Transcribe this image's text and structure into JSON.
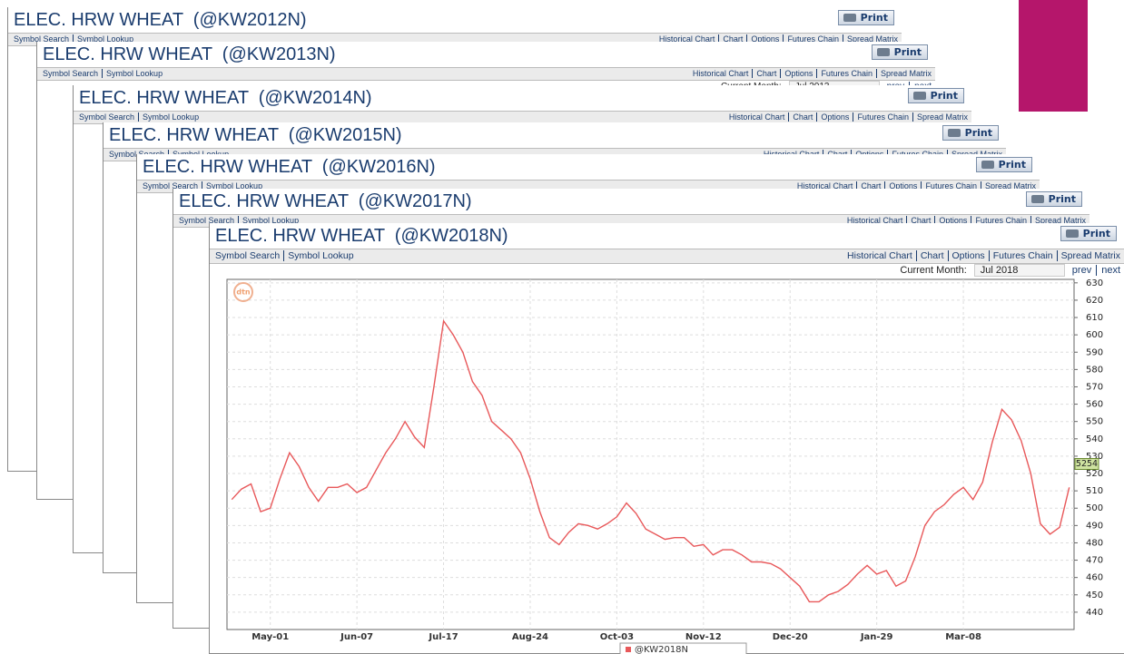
{
  "windows": [
    {
      "title": "ELEC. HRW WHEAT  (@KW2012N)",
      "print": "Print",
      "links": [
        "Symbol Search",
        "Symbol Lookup"
      ],
      "menu": [
        "Historical Chart",
        "Chart",
        "Options",
        "Futures Chain",
        "Spread Matrix"
      ]
    },
    {
      "title": "ELEC. HRW WHEAT  (@KW2013N)",
      "print": "Print",
      "links": [
        "Symbol Search",
        "Symbol Lookup"
      ],
      "menu": [
        "Historical Chart",
        "Chart",
        "Options",
        "Futures Chain",
        "Spread Matrix"
      ],
      "current_month": {
        "label": "Current Month:",
        "value": "Jul 2013",
        "prev": "prev",
        "next": "next"
      }
    },
    {
      "title": "ELEC. HRW WHEAT  (@KW2014N)",
      "print": "Print",
      "links": [
        "Symbol Search",
        "Symbol Lookup"
      ],
      "menu": [
        "Historical Chart",
        "Chart",
        "Options",
        "Futures Chain",
        "Spread Matrix"
      ]
    },
    {
      "title": "ELEC. HRW WHEAT  (@KW2015N)",
      "print": "Print",
      "links": [
        "Symbol Search",
        "Symbol Lookup"
      ],
      "menu": [
        "Historical Chart",
        "Chart",
        "Options",
        "Futures Chain",
        "Spread Matrix"
      ]
    },
    {
      "title": "ELEC. HRW WHEAT  (@KW2016N)",
      "print": "Print",
      "links": [
        "Symbol Search",
        "Symbol Lookup"
      ],
      "menu": [
        "Historical Chart",
        "Chart",
        "Options",
        "Futures Chain",
        "Spread Matrix"
      ]
    },
    {
      "title": "ELEC. HRW WHEAT  (@KW2017N)",
      "print": "Print",
      "links": [
        "Symbol Search",
        "Symbol Lookup"
      ],
      "menu": [
        "Historical Chart",
        "Chart",
        "Options",
        "Futures Chain",
        "Spread Matrix"
      ]
    },
    {
      "title": "ELEC. HRW WHEAT  (@KW2018N)",
      "print": "Print",
      "links": [
        "Symbol Search",
        "Symbol Lookup"
      ],
      "menu": [
        "Historical Chart",
        "Chart",
        "Options",
        "Futures Chain",
        "Spread Matrix"
      ],
      "current_month": {
        "label": "Current Month:",
        "value": "Jul 2018",
        "prev": "prev",
        "next": "next"
      }
    }
  ],
  "chart_data": {
    "type": "line",
    "watermark": "dtn",
    "categories": [
      null,
      null,
      null,
      null,
      "May-01",
      null,
      null,
      null,
      null,
      null,
      null,
      null,
      null,
      "Jun-07",
      null,
      null,
      null,
      null,
      null,
      null,
      null,
      null,
      "Jul-17",
      null,
      null,
      null,
      null,
      null,
      null,
      null,
      null,
      "Aug-24",
      null,
      null,
      null,
      null,
      null,
      null,
      null,
      null,
      "Oct-03",
      null,
      null,
      null,
      null,
      null,
      null,
      null,
      null,
      "Nov-12",
      null,
      null,
      null,
      null,
      null,
      null,
      null,
      null,
      "Dec-20",
      null,
      null,
      null,
      null,
      null,
      null,
      null,
      null,
      "Jan-29",
      null,
      null,
      null,
      null,
      null,
      null,
      null,
      null,
      "Mar-08",
      null,
      null,
      null,
      null,
      null,
      null,
      null,
      null,
      null,
      null,
      null
    ],
    "series": [
      {
        "name": "@KW2018N",
        "color": "#e8585a",
        "values": [
          505,
          511,
          514,
          498,
          500,
          517,
          532,
          524,
          512,
          504,
          512,
          512,
          514,
          509,
          512,
          522,
          532,
          540,
          550,
          541,
          535,
          570,
          608,
          600,
          590,
          573,
          565,
          550,
          545,
          540,
          532,
          517,
          498,
          483,
          479,
          486,
          491,
          490,
          488,
          491,
          495,
          503,
          497,
          488,
          485,
          482,
          483,
          483,
          478,
          479,
          473,
          476,
          476,
          473,
          469,
          469,
          468,
          465,
          460,
          455,
          446,
          446,
          450,
          452,
          456,
          462,
          467,
          462,
          464,
          455,
          458,
          472,
          490,
          498,
          502,
          508,
          512,
          505,
          515,
          538,
          557,
          551,
          539,
          520,
          491,
          485,
          489,
          512
        ]
      }
    ],
    "ylim": [
      430,
      632
    ],
    "yticks": [
      440,
      450,
      460,
      470,
      480,
      490,
      500,
      510,
      520,
      530,
      540,
      550,
      560,
      570,
      580,
      590,
      600,
      610,
      620,
      630
    ],
    "grid": true,
    "last_price": {
      "value": 525.5,
      "label": "5254"
    }
  }
}
